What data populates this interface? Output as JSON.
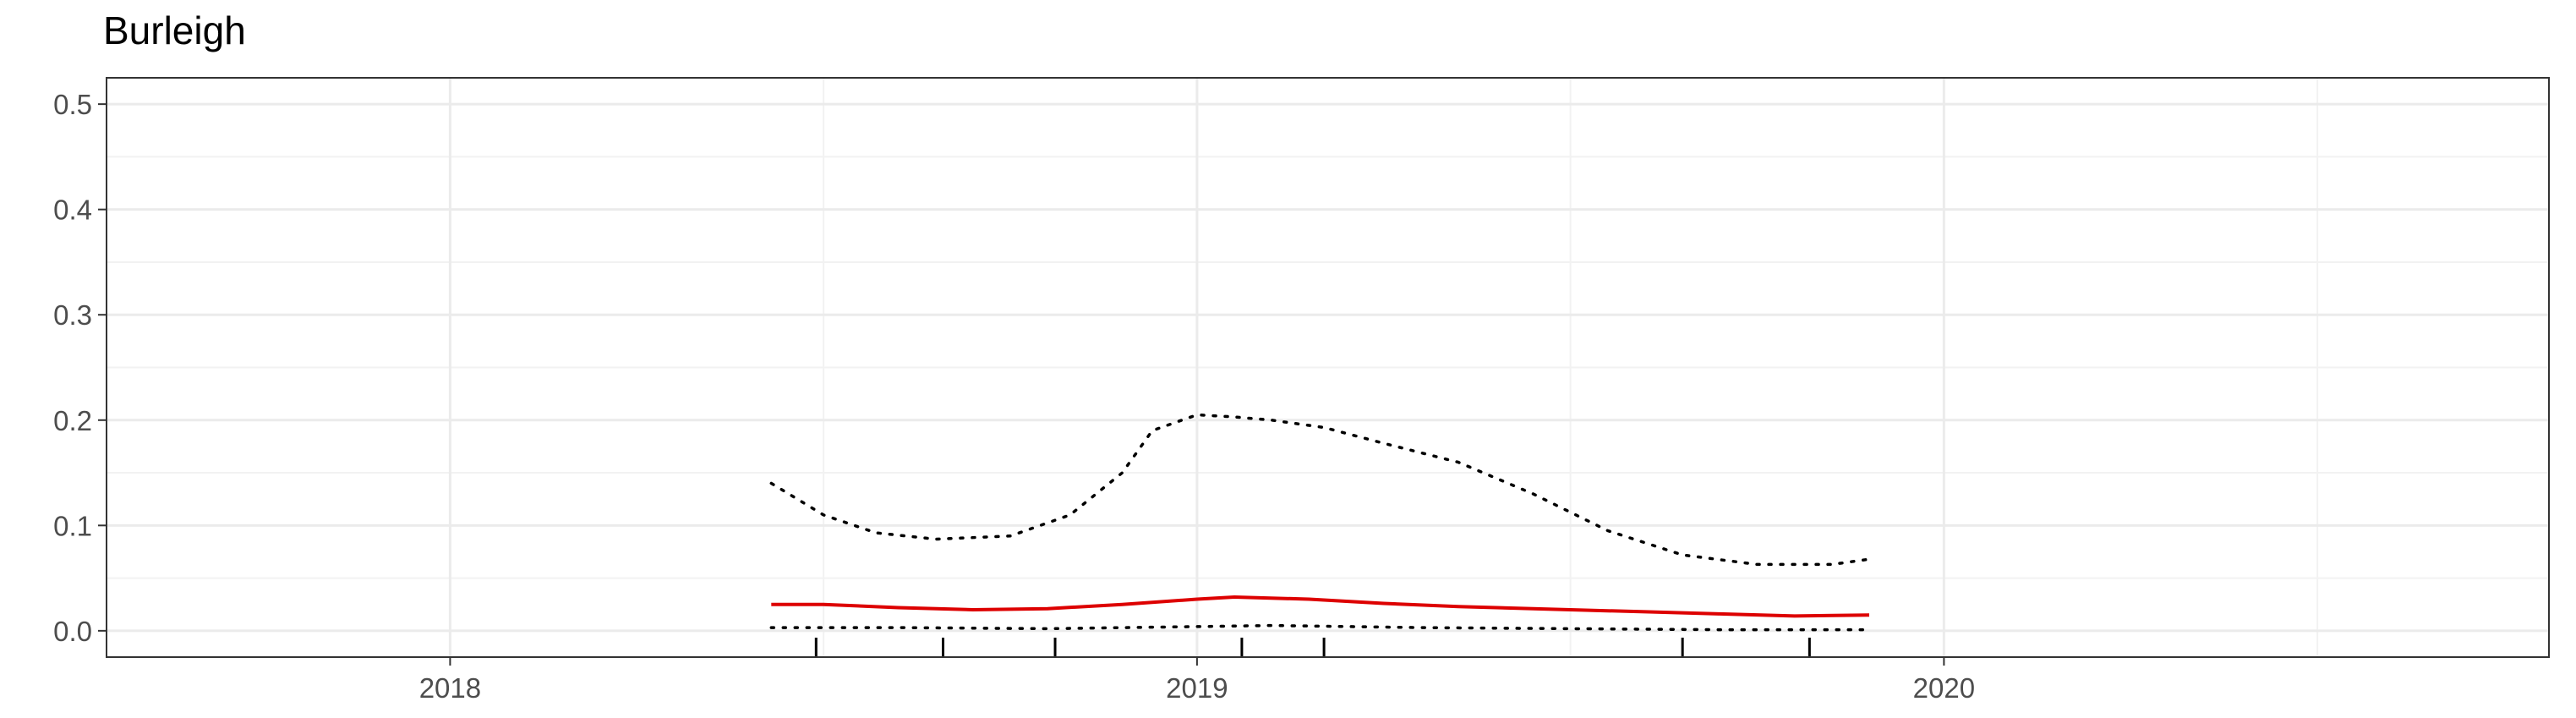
{
  "chart_data": {
    "type": "line",
    "title": "Burleigh",
    "xlabel": "",
    "ylabel": "",
    "xlim": [
      2017.54,
      2020.81
    ],
    "ylim": [
      -0.025,
      0.525
    ],
    "x_ticks": [
      2018,
      2019,
      2020
    ],
    "x_tick_labels": [
      "2018",
      "2019",
      "2020"
    ],
    "y_ticks": [
      0.0,
      0.1,
      0.2,
      0.3,
      0.4,
      0.5
    ],
    "y_tick_labels": [
      "0.0",
      "0.1",
      "0.2",
      "0.3",
      "0.4",
      "0.5"
    ],
    "grid": true,
    "series": [
      {
        "role": "estimate",
        "style": "solid",
        "color": "#dd0000",
        "x": [
          2018.43,
          2018.5,
          2018.6,
          2018.7,
          2018.8,
          2018.9,
          2019.0,
          2019.05,
          2019.15,
          2019.25,
          2019.35,
          2019.5,
          2019.6,
          2019.7,
          2019.8,
          2019.9
        ],
        "y": [
          0.025,
          0.025,
          0.022,
          0.02,
          0.021,
          0.025,
          0.03,
          0.032,
          0.03,
          0.026,
          0.023,
          0.02,
          0.018,
          0.016,
          0.014,
          0.015
        ]
      },
      {
        "role": "upper bound",
        "style": "dotted",
        "color": "#000000",
        "x": [
          2018.43,
          2018.5,
          2018.57,
          2018.65,
          2018.75,
          2018.83,
          2018.9,
          2018.94,
          2019.0,
          2019.05,
          2019.1,
          2019.17,
          2019.25,
          2019.35,
          2019.45,
          2019.55,
          2019.65,
          2019.75,
          2019.85,
          2019.9
        ],
        "y": [
          0.14,
          0.11,
          0.093,
          0.087,
          0.09,
          0.11,
          0.15,
          0.19,
          0.205,
          0.203,
          0.2,
          0.193,
          0.178,
          0.16,
          0.13,
          0.095,
          0.072,
          0.063,
          0.063,
          0.068
        ]
      },
      {
        "role": "lower bound",
        "style": "dotted",
        "color": "#000000",
        "x": [
          2018.43,
          2018.6,
          2018.8,
          2019.0,
          2019.1,
          2019.3,
          2019.5,
          2019.7,
          2019.9
        ],
        "y": [
          0.003,
          0.003,
          0.002,
          0.004,
          0.005,
          0.003,
          0.002,
          0.001,
          0.001
        ]
      }
    ],
    "rug_x": [
      2018.49,
      2018.66,
      2018.81,
      2019.06,
      2019.17,
      2019.65,
      2019.82
    ]
  }
}
